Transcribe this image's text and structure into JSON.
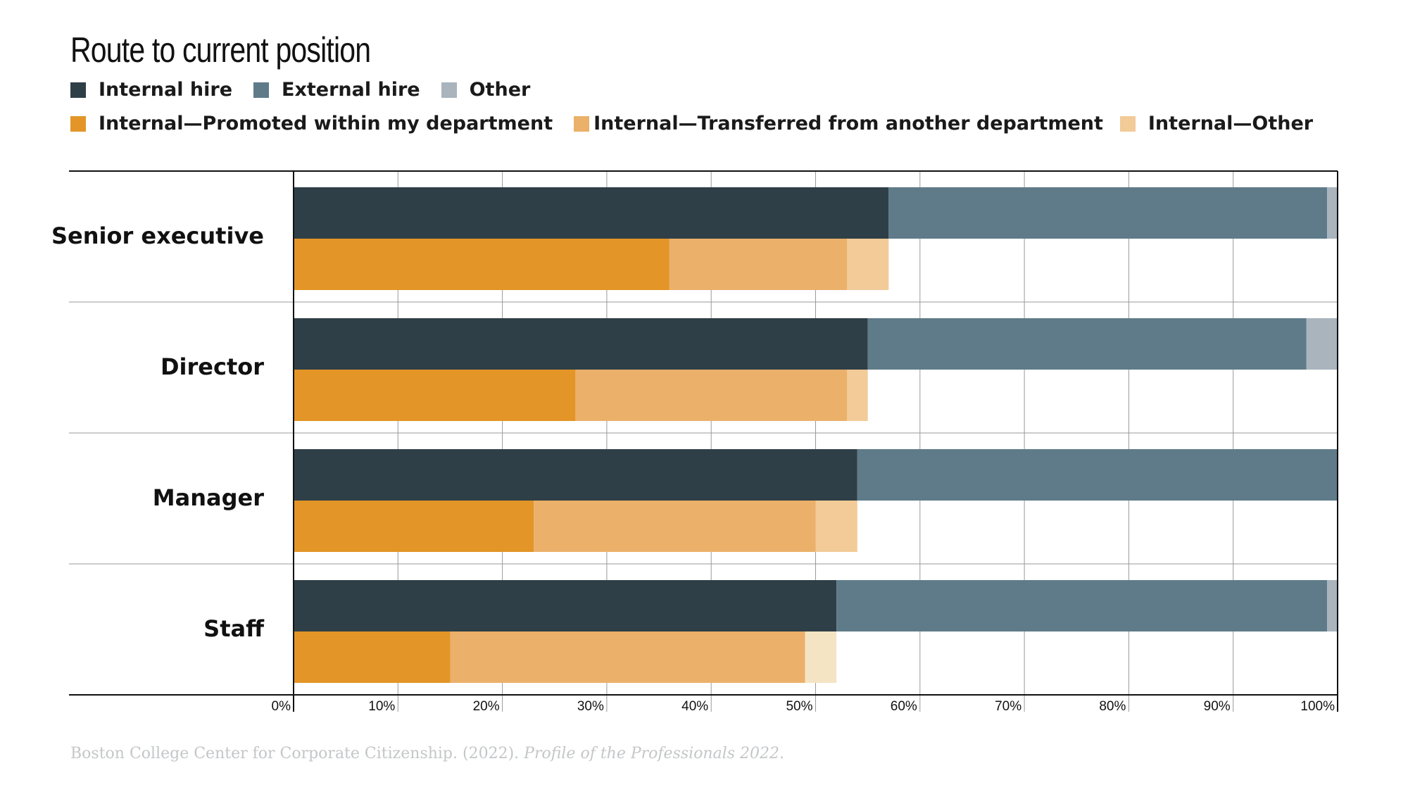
{
  "title": "Route to current position",
  "legend_row1": [
    {
      "label": "Internal hire",
      "color": "#2f3f47"
    },
    {
      "label": "External hire",
      "color": "#5f7b89"
    },
    {
      "label": "Other",
      "color": "#a9b4bd"
    }
  ],
  "legend_row2": [
    {
      "label": "Internal—Promoted within my department",
      "color": "#e39527"
    },
    {
      "label": "Internal—Transferred from another department",
      "color": "#ebb06a"
    },
    {
      "label": "Internal—Other",
      "color": "#f2cb98"
    }
  ],
  "source": {
    "text": "Boston College Center for Corporate Citizenship. (2022). ",
    "italic": "Profile of the Professionals 2022."
  },
  "chart_data": {
    "type": "bar",
    "orientation": "horizontal",
    "stacked": true,
    "title": "Route to current position",
    "categories": [
      "Senior executive",
      "Director",
      "Manager",
      "Staff"
    ],
    "xlim": [
      0,
      100
    ],
    "x_ticks": [
      "0%",
      "10%",
      "20%",
      "30%",
      "40%",
      "50%",
      "60%",
      "70%",
      "80%",
      "90%",
      "100%"
    ],
    "grid": true,
    "legend_position": "top-left",
    "upper_bar_series": [
      {
        "name": "Internal hire",
        "color": "#2f3f47",
        "values": [
          57,
          55,
          54,
          52
        ]
      },
      {
        "name": "External hire",
        "color": "#5f7b89",
        "values": [
          42,
          42,
          46,
          47
        ]
      },
      {
        "name": "Other",
        "color": "#a9b4bd",
        "values": [
          1,
          3,
          0,
          1
        ]
      }
    ],
    "lower_bar_series": [
      {
        "name": "Internal—Promoted within my department",
        "color": "#e39527",
        "values": [
          36,
          27,
          23,
          15
        ]
      },
      {
        "name": "Internal—Transferred from another department",
        "color": "#ebb06a",
        "values": [
          17,
          26,
          27,
          34
        ]
      },
      {
        "name": "Internal—Other",
        "color": "#f2cb98",
        "values": [
          4,
          2,
          4,
          3
        ]
      }
    ],
    "lower_bar_overrides": {
      "Staff": {
        "Internal—Other": "#f5e4c4"
      }
    }
  }
}
